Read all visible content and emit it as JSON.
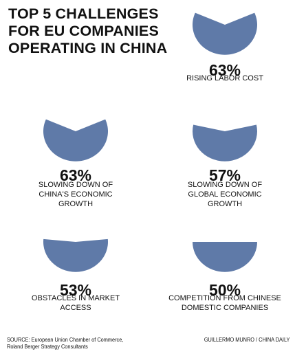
{
  "title_lines": [
    "TOP 5 CHALLENGES",
    "FOR EU COMPANIES",
    "OPERATING IN CHINA"
  ],
  "source_lines": [
    "SOURCE: European Union Chamber of Commerce,",
    "Roland Berger Strategy Consultants"
  ],
  "credit": "GUILLERMO MUNRO / CHINA DAILY",
  "colors": {
    "pie": "#5f7aa8",
    "text": "#111111"
  },
  "chart_data": {
    "type": "pie",
    "title": "TOP 5 CHALLENGES FOR EU COMPANIES OPERATING IN CHINA",
    "items": [
      {
        "value": 63,
        "label": "63%",
        "text_lines": [
          "RISING LABOR COST"
        ]
      },
      {
        "value": 63,
        "label": "63%",
        "text_lines": [
          "SLOWING DOWN OF",
          "CHINA'S ECONOMIC",
          "GROWTH"
        ]
      },
      {
        "value": 57,
        "label": "57%",
        "text_lines": [
          "SLOWING DOWN OF",
          "GLOBAL ECONOMIC",
          "GROWTH"
        ]
      },
      {
        "value": 53,
        "label": "53%",
        "text_lines": [
          "OBSTACLES IN MARKET",
          "ACCESS"
        ]
      },
      {
        "value": 50,
        "label": "50%",
        "text_lines": [
          "COMPETITION FROM CHINESE",
          "DOMESTIC COMPANIES"
        ]
      }
    ]
  }
}
